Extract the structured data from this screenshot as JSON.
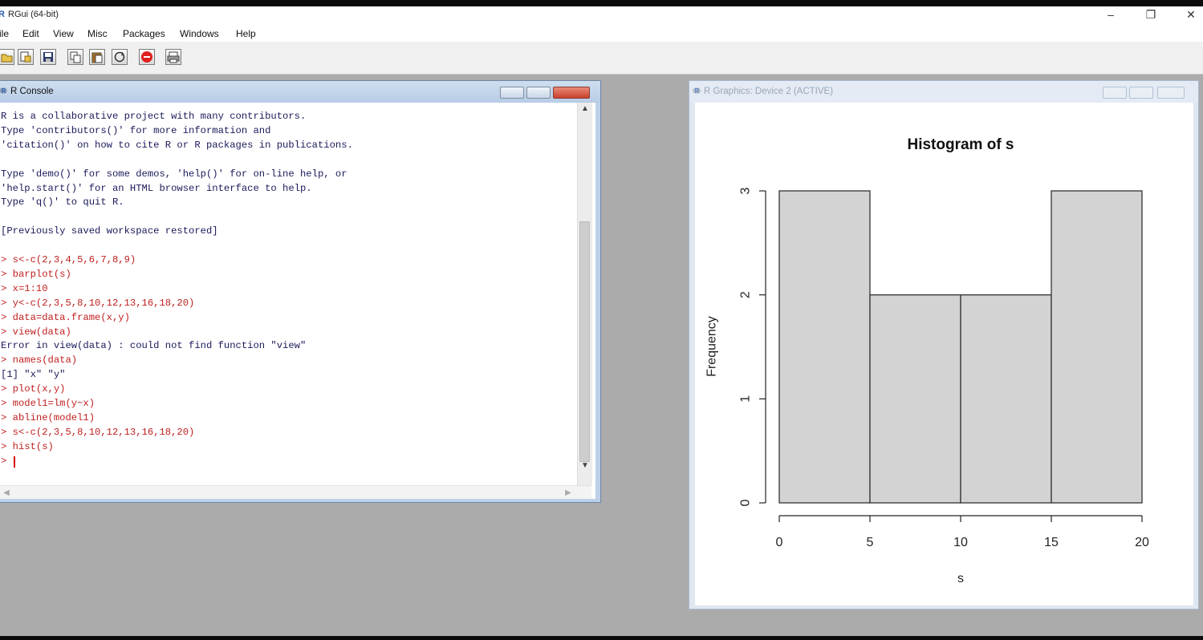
{
  "app": {
    "title": "RGui (64-bit)",
    "icon": "r-logo-icon",
    "controls": {
      "minimize": "–",
      "restore": "❐",
      "close": "✕"
    }
  },
  "menu": [
    "ile",
    "Edit",
    "View",
    "Misc",
    "Packages",
    "Windows",
    "Help"
  ],
  "toolbar": {
    "buttons": [
      "open-script-icon",
      "load-workspace-icon",
      "save-icon",
      "copy-icon",
      "paste-icon",
      "copy-paste-icon",
      "stop-icon",
      "print-icon"
    ]
  },
  "console": {
    "title": "R Console",
    "lines": [
      {
        "text": "R is a collaborative project with many contributors.",
        "type": "output"
      },
      {
        "text": "Type 'contributors()' for more information and",
        "type": "output"
      },
      {
        "text": "'citation()' on how to cite R or R packages in publications.",
        "type": "output"
      },
      {
        "text": "",
        "type": "output"
      },
      {
        "text": "Type 'demo()' for some demos, 'help()' for on-line help, or",
        "type": "output"
      },
      {
        "text": "'help.start()' for an HTML browser interface to help.",
        "type": "output"
      },
      {
        "text": "Type 'q()' to quit R.",
        "type": "output"
      },
      {
        "text": "",
        "type": "output"
      },
      {
        "text": "[Previously saved workspace restored]",
        "type": "output"
      },
      {
        "text": "",
        "type": "output"
      },
      {
        "text": "> s<-c(2,3,4,5,6,7,8,9)",
        "type": "input"
      },
      {
        "text": "> barplot(s)",
        "type": "input"
      },
      {
        "text": "> x=1:10",
        "type": "input"
      },
      {
        "text": "> y<-c(2,3,5,8,10,12,13,16,18,20)",
        "type": "input"
      },
      {
        "text": "> data=data.frame(x,y)",
        "type": "input"
      },
      {
        "text": "> view(data)",
        "type": "input"
      },
      {
        "text": "Error in view(data) : could not find function \"view\"",
        "type": "output"
      },
      {
        "text": "> names(data)",
        "type": "input"
      },
      {
        "text": "[1] \"x\" \"y\"",
        "type": "output"
      },
      {
        "text": "> plot(x,y)",
        "type": "input"
      },
      {
        "text": "> model1=lm(y~x)",
        "type": "input"
      },
      {
        "text": "> abline(model1)",
        "type": "input"
      },
      {
        "text": "> s<-c(2,3,5,8,10,12,13,16,18,20)",
        "type": "input"
      },
      {
        "text": "> hist(s)",
        "type": "input"
      },
      {
        "text": ">",
        "type": "input"
      }
    ]
  },
  "graphics": {
    "title": "R Graphics: Device 2 (ACTIVE)"
  },
  "chart_data": {
    "type": "bar",
    "title": "Histogram of s",
    "xlabel": "s",
    "ylabel": "Frequency",
    "bins": [
      [
        0,
        5
      ],
      [
        5,
        10
      ],
      [
        10,
        15
      ],
      [
        15,
        20
      ]
    ],
    "values": [
      3,
      2,
      2,
      3
    ],
    "xlim": [
      0,
      20
    ],
    "ylim": [
      0,
      3
    ],
    "xticks": [
      "0",
      "5",
      "10",
      "15",
      "20"
    ],
    "yticks": [
      "0",
      "1",
      "2",
      "3"
    ],
    "bar_fill": "#d3d3d3",
    "bar_stroke": "#333333",
    "grid": false
  }
}
